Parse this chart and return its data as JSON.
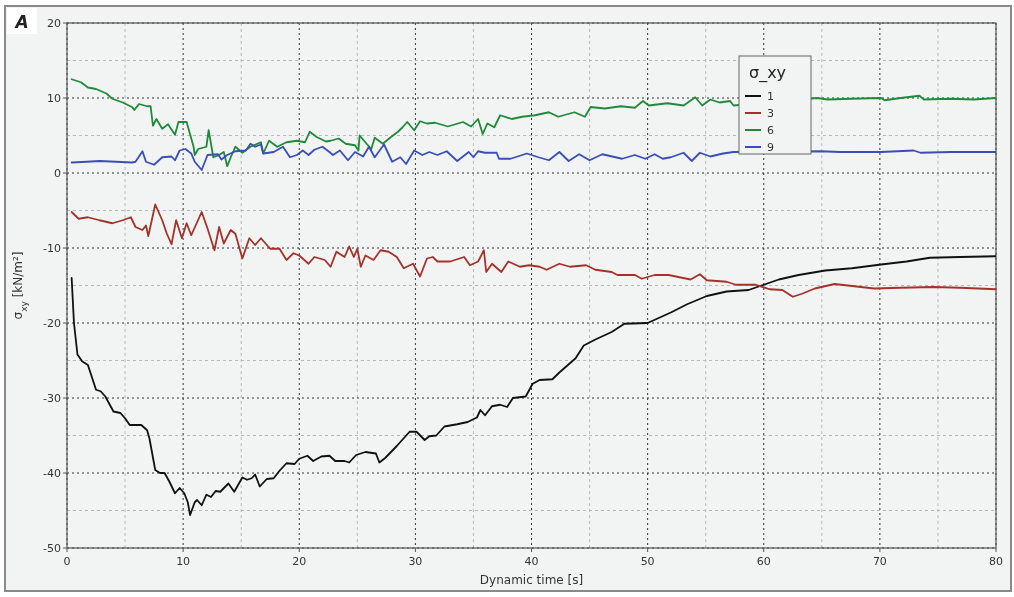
{
  "chart_data": {
    "type": "line",
    "xlabel": "Dynamic time [s]",
    "ylabel": "σ$_{xy}$ [kN/m²]",
    "legend_title": "σ_xy",
    "annotations": [
      "A"
    ],
    "xlim": [
      0,
      80
    ],
    "xticks": [
      0,
      10,
      20,
      30,
      40,
      50,
      60,
      70,
      80
    ],
    "ylim": [
      -50,
      20
    ],
    "yticks": [
      -50,
      -40,
      -30,
      -20,
      -10,
      0,
      10,
      20
    ],
    "grid": true,
    "legend": "top right",
    "marker": "none",
    "line_style": "solid",
    "series": [
      {
        "name": "1",
        "color": "#111111",
        "x": [
          0.4,
          0.6,
          0.9,
          1.3,
          1.8,
          2.5,
          2.9,
          3.3,
          4.0,
          4.6,
          5.0,
          5.4,
          6.4,
          6.9,
          7.1,
          7.6,
          8.0,
          8.4,
          8.8,
          9.3,
          9.7,
          10.1,
          10.4,
          10.6,
          11.0,
          11.2,
          11.6,
          12.0,
          12.4,
          12.8,
          13.2,
          13.9,
          14.4,
          15.1,
          15.5,
          15.9,
          16.2,
          16.6,
          17.2,
          17.8,
          18.3,
          18.9,
          19.6,
          20.0,
          20.7,
          21.2,
          21.9,
          22.6,
          23.1,
          23.9,
          24.3,
          24.9,
          25.7,
          26.6,
          26.9,
          27.4,
          28.4,
          29.5,
          30.1,
          30.8,
          31.2,
          31.8,
          32.5,
          33.6,
          34.5,
          35.3,
          35.6,
          36.0,
          36.6,
          37.3,
          37.9,
          38.4,
          39.5,
          40.1,
          40.7,
          41.8,
          42.4,
          43.8,
          44.5,
          45.5,
          46.9,
          48.0,
          50.0,
          52.0,
          53.4,
          55.1,
          56.8,
          58.7,
          61.3,
          63.0,
          65.3,
          67.6,
          70.1,
          72.3,
          74.3,
          76.9,
          80.0
        ],
        "values": [
          -14,
          -20,
          -24.2,
          -25.1,
          -25.6,
          -28.9,
          -29.1,
          -29.8,
          -31.8,
          -32,
          -32.7,
          -33.6,
          -33.6,
          -34.3,
          -35.4,
          -39.6,
          -40,
          -40,
          -41.1,
          -42.7,
          -42,
          -42.7,
          -43.9,
          -45.6,
          -43.9,
          -43.6,
          -44.3,
          -42.9,
          -43.2,
          -42.4,
          -42.5,
          -41.4,
          -42.5,
          -40.6,
          -40.9,
          -40.7,
          -40.2,
          -41.8,
          -40.8,
          -40.7,
          -39.7,
          -38.7,
          -38.8,
          -38.1,
          -37.7,
          -38.4,
          -37.8,
          -37.7,
          -38.4,
          -38.4,
          -38.6,
          -37.6,
          -37.2,
          -37.4,
          -38.6,
          -38,
          -36.4,
          -34.5,
          -34.5,
          -35.6,
          -35.1,
          -35,
          -33.8,
          -33.5,
          -33.2,
          -32.6,
          -31.6,
          -32.3,
          -31.1,
          -30.9,
          -31.2,
          -30,
          -29.8,
          -28.1,
          -27.6,
          -27.5,
          -26.6,
          -24.7,
          -23,
          -22.2,
          -21.2,
          -20.1,
          -20,
          -18.6,
          -17.5,
          -16.4,
          -15.8,
          -15.6,
          -14.2,
          -13.6,
          -13,
          -12.7,
          -12.2,
          -11.8,
          -11.3,
          -11.2,
          -11.1
        ]
      },
      {
        "name": "3",
        "color": "#a3322a",
        "x": [
          0.4,
          1.0,
          1.8,
          2.8,
          3.9,
          4.8,
          5.5,
          5.9,
          6.5,
          6.8,
          7.0,
          7.6,
          8.2,
          8.6,
          9.0,
          9.4,
          9.9,
          10.3,
          10.7,
          11.6,
          12.1,
          12.7,
          13.1,
          13.5,
          14.1,
          14.5,
          15.1,
          15.7,
          16.2,
          16.7,
          17.5,
          18.3,
          18.9,
          19.5,
          20.0,
          20.8,
          21.3,
          22.2,
          22.7,
          23.2,
          23.9,
          24.3,
          24.7,
          25.0,
          25.3,
          25.7,
          26.4,
          27.0,
          27.7,
          28.4,
          29.0,
          29.8,
          30.4,
          31.0,
          31.5,
          31.9,
          33.0,
          34.2,
          34.7,
          35.4,
          35.9,
          36.1,
          36.6,
          37.4,
          38.0,
          39.0,
          39.8,
          40.7,
          41.3,
          42.4,
          43.3,
          44.7,
          45.5,
          46.9,
          47.4,
          48.9,
          49.5,
          50.6,
          51.8,
          53.7,
          54.5,
          55.1,
          56.8,
          57.6,
          59.3,
          60.5,
          61.6,
          62.5,
          63.3,
          64.4,
          66.1,
          67.8,
          69.5,
          71.8,
          74.6,
          76.9,
          80.0
        ],
        "values": [
          -5.2,
          -6.1,
          -5.9,
          -6.3,
          -6.7,
          -6.3,
          -5.9,
          -7.2,
          -7.6,
          -7,
          -8.4,
          -4.2,
          -6.3,
          -8.1,
          -9.5,
          -6.3,
          -8.7,
          -6.7,
          -8.3,
          -5.2,
          -7.4,
          -10.3,
          -7.2,
          -9.4,
          -7.6,
          -8.1,
          -11.4,
          -8.7,
          -9.6,
          -8.7,
          -10.1,
          -10.1,
          -11.6,
          -10.7,
          -11,
          -12.1,
          -11.2,
          -11.6,
          -12.5,
          -10.5,
          -11.2,
          -9.8,
          -11.2,
          -10.1,
          -12.5,
          -11,
          -11.6,
          -10.3,
          -10.5,
          -11.2,
          -12.7,
          -12.1,
          -13.8,
          -11.4,
          -11.2,
          -11.8,
          -11.8,
          -11.2,
          -12.3,
          -11.8,
          -10.3,
          -13.2,
          -12.1,
          -13.2,
          -11.8,
          -12.5,
          -12.3,
          -12.5,
          -12.9,
          -12.1,
          -12.5,
          -12.3,
          -12.9,
          -13.2,
          -13.6,
          -13.6,
          -14.1,
          -13.6,
          -13.6,
          -14.2,
          -13.5,
          -14.3,
          -14.5,
          -14.9,
          -14.9,
          -15.5,
          -15.6,
          -16.5,
          -16.1,
          -15.4,
          -14.8,
          -15.1,
          -15.4,
          -15.3,
          -15.2,
          -15.3,
          -15.5
        ]
      },
      {
        "name": "6",
        "color": "#1f8a3a",
        "x": [
          0.4,
          1.2,
          1.8,
          2.5,
          3.4,
          3.9,
          4.8,
          5.6,
          5.8,
          6.2,
          6.9,
          7.2,
          7.4,
          7.7,
          8.2,
          8.7,
          9.3,
          9.6,
          10.3,
          10.9,
          11.0,
          11.3,
          12.0,
          12.2,
          12.6,
          13.1,
          13.5,
          13.8,
          14.1,
          14.5,
          15.1,
          15.8,
          16.7,
          16.9,
          17.4,
          18.1,
          18.9,
          19.8,
          20.5,
          20.9,
          21.5,
          22.3,
          22.7,
          23.4,
          24.0,
          24.8,
          25.1,
          25.2,
          25.8,
          26.2,
          26.5,
          27.2,
          27.9,
          28.5,
          28.9,
          29.3,
          29.9,
          30.4,
          31.0,
          31.7,
          32.8,
          34.1,
          34.8,
          35.4,
          35.8,
          36.2,
          36.8,
          37.3,
          38.3,
          39.2,
          40.3,
          41.5,
          42.3,
          43.7,
          44.6,
          45.1,
          46.3,
          47.7,
          48.9,
          49.6,
          50.1,
          51.7,
          53.1,
          54.1,
          54.7,
          55.4,
          56.2,
          57.1,
          57.4,
          64.6,
          65.5,
          67.5,
          70.1,
          70.4,
          71.8,
          73.4,
          73.8,
          76.1,
          78.1,
          80.0
        ],
        "values": [
          12.5,
          12.1,
          11.4,
          11.2,
          10.6,
          9.9,
          9.4,
          8.8,
          8.4,
          9.2,
          8.9,
          8.9,
          6.3,
          7.2,
          5.9,
          6.5,
          5.1,
          6.8,
          6.8,
          3.5,
          2.4,
          3.2,
          3.5,
          5.7,
          2.1,
          2.4,
          2.8,
          0.9,
          2.1,
          3.5,
          2.7,
          3.5,
          4.1,
          2.6,
          4.3,
          3.5,
          4.1,
          4.3,
          4.1,
          5.5,
          4.8,
          4.2,
          4.3,
          4.6,
          3.9,
          3.7,
          3,
          5,
          3.9,
          3.2,
          4.7,
          3.9,
          4.8,
          5.5,
          6.1,
          6.8,
          5.7,
          6.9,
          6.6,
          6.7,
          6.2,
          6.8,
          6.2,
          7.2,
          5.2,
          6.6,
          6.1,
          7.7,
          7.2,
          7.5,
          7.7,
          8.1,
          7.5,
          8.1,
          7.5,
          8.8,
          8.6,
          8.9,
          8.7,
          9.6,
          9,
          9.3,
          9,
          10.1,
          9,
          9.8,
          9.4,
          9.6,
          9,
          10,
          9.8,
          9.9,
          10,
          9.7,
          10,
          10.3,
          9.8,
          9.9,
          9.8,
          10
        ]
      },
      {
        "name": "9",
        "color": "#3a4fb5",
        "x": [
          0.4,
          1.7,
          2.8,
          5.6,
          5.9,
          6.5,
          6.8,
          7.5,
          8.2,
          9.0,
          9.3,
          9.7,
          10.2,
          10.7,
          11.0,
          11.6,
          12.1,
          13.0,
          13.3,
          13.8,
          14.5,
          15.4,
          15.8,
          16.2,
          16.7,
          16.9,
          17.8,
          18.6,
          19.2,
          19.8,
          20.3,
          20.8,
          21.3,
          22.0,
          22.6,
          22.9,
          23.5,
          24.2,
          24.8,
          25.5,
          26.0,
          26.5,
          27.3,
          28.0,
          28.7,
          29.2,
          29.9,
          30.6,
          31.2,
          31.9,
          32.7,
          33.6,
          34.6,
          35.0,
          35.4,
          36.0,
          37.0,
          37.2,
          38.2,
          39.6,
          40.6,
          41.5,
          42.4,
          43.2,
          44.1,
          45.0,
          46.1,
          47.8,
          48.9,
          49.8,
          50.6,
          51.3,
          52.0,
          53.1,
          53.8,
          54.5,
          55.4,
          56.5,
          57.4,
          64.9,
          66.6,
          70.1,
          72.9,
          73.5,
          76.1,
          80.0
        ],
        "values": [
          1.4,
          1.5,
          1.6,
          1.4,
          1.5,
          2.9,
          1.5,
          1.1,
          2.1,
          2.2,
          1.7,
          3,
          3.2,
          2.6,
          1.5,
          0.4,
          2.4,
          2.5,
          1.8,
          2.4,
          2.9,
          3,
          3.9,
          3.5,
          3.8,
          2.6,
          2.8,
          3.5,
          2.1,
          2.4,
          3,
          2.4,
          3.1,
          3.5,
          2.8,
          2.4,
          3,
          1.7,
          2.8,
          2.2,
          3.5,
          2.1,
          3.8,
          1.5,
          2.1,
          1.2,
          3,
          2.4,
          2.8,
          2.4,
          2.9,
          1.6,
          2.8,
          2.1,
          2.9,
          2.7,
          2.7,
          1.9,
          1.9,
          2.6,
          2.1,
          1.7,
          2.8,
          1.6,
          2.5,
          1.7,
          2.5,
          1.9,
          2.4,
          1.9,
          2.5,
          1.9,
          2.1,
          2.7,
          1.6,
          2.7,
          2.2,
          2.6,
          2.8,
          2.9,
          2.8,
          2.8,
          3,
          2.7,
          2.8,
          2.8
        ]
      }
    ]
  }
}
